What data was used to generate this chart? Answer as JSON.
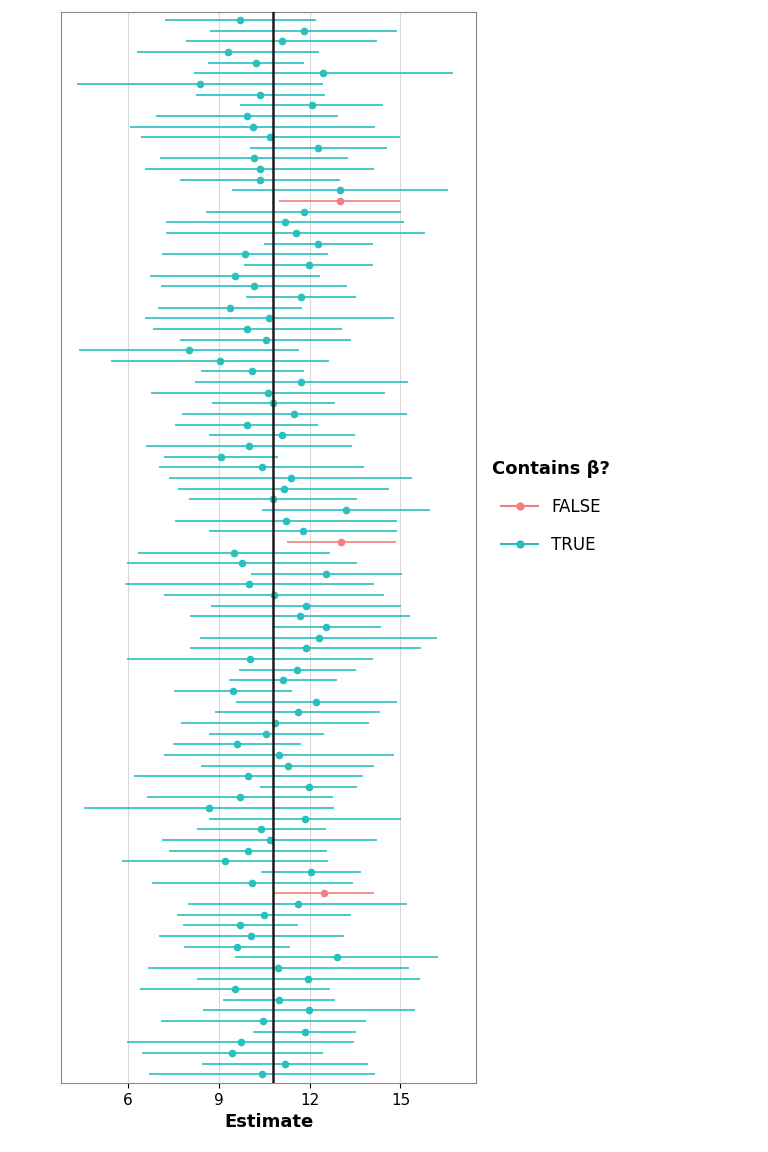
{
  "true_beta": 10.8,
  "n_sim": 100,
  "true_color": "#2ABFBF",
  "false_color": "#F08080",
  "line_color": "#1a1a1a",
  "background_color": "#ffffff",
  "grid_color": "#D9D9D9",
  "xlabel": "Estimate",
  "legend_title": "Contains β?",
  "legend_false": "FALSE",
  "legend_true": "TRUE",
  "xlim": [
    3.8,
    17.5
  ],
  "xticks": [
    6,
    9,
    12,
    15
  ],
  "figsize": [
    7.68,
    11.52
  ],
  "dpi": 100,
  "seed": 123,
  "est_mean": 10.8,
  "est_sd": 1.0,
  "se_min": 0.8,
  "se_max": 2.2,
  "t_crit": 1.96
}
